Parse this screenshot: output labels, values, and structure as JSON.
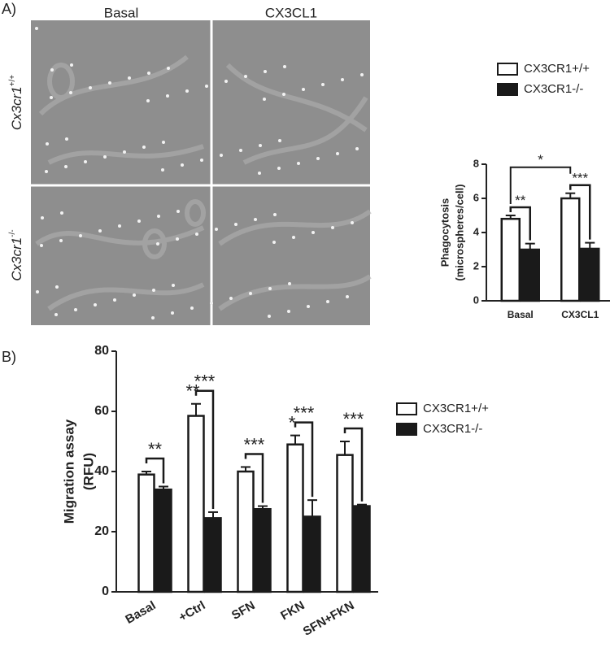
{
  "panel_labels": [
    "A)",
    "B)"
  ],
  "images": {
    "columns": [
      "Basal",
      "CX3CL1"
    ],
    "rows": [
      {
        "name": "Cx3cr1",
        "superscript": "+/+"
      },
      {
        "name": "Cx3cr1",
        "superscript": "-/-"
      }
    ]
  },
  "chart_data": [
    {
      "type": "bar",
      "ylabel": [
        "Phagocytosis",
        "(microspheres/cell)"
      ],
      "categories": [
        "Basal",
        "CX3CL1"
      ],
      "series": [
        {
          "name": "CX3CR1+/+",
          "color": "#ffffff",
          "values": [
            4.8,
            6.0
          ],
          "errors": [
            0.2,
            0.3
          ]
        },
        {
          "name": "CX3CR1-/-",
          "color": "#1a1a1a",
          "values": [
            3.0,
            3.05
          ],
          "errors": [
            0.35,
            0.35
          ]
        }
      ],
      "pair_significance": [
        "**",
        "***"
      ],
      "across_significance": "*",
      "ylim": [
        0,
        8
      ],
      "yticks": [
        0,
        2,
        4,
        6,
        8
      ]
    },
    {
      "type": "bar",
      "ylabel": [
        "Migration assay",
        "(RFU)"
      ],
      "categories": [
        "Basal",
        "+Ctrl",
        "SFN",
        "FKN",
        "SFN+FKN"
      ],
      "series": [
        {
          "name": "CX3CR1+/+",
          "color": "#ffffff",
          "values": [
            39,
            58.5,
            40,
            49,
            45.5
          ],
          "errors": [
            1,
            4,
            1.5,
            3,
            4.5
          ]
        },
        {
          "name": "CX3CR1-/-",
          "color": "#1a1a1a",
          "values": [
            34,
            24.5,
            27.5,
            25,
            28.5
          ],
          "errors": [
            1,
            2,
            1,
            5.5,
            0.5
          ]
        }
      ],
      "pair_significance": [
        "**",
        "***",
        "***",
        "***",
        "***"
      ],
      "above_bar_labels": [
        null,
        "**",
        null,
        "*",
        null
      ],
      "ylim": [
        0,
        80
      ],
      "yticks": [
        0,
        20,
        40,
        60,
        80
      ]
    }
  ]
}
